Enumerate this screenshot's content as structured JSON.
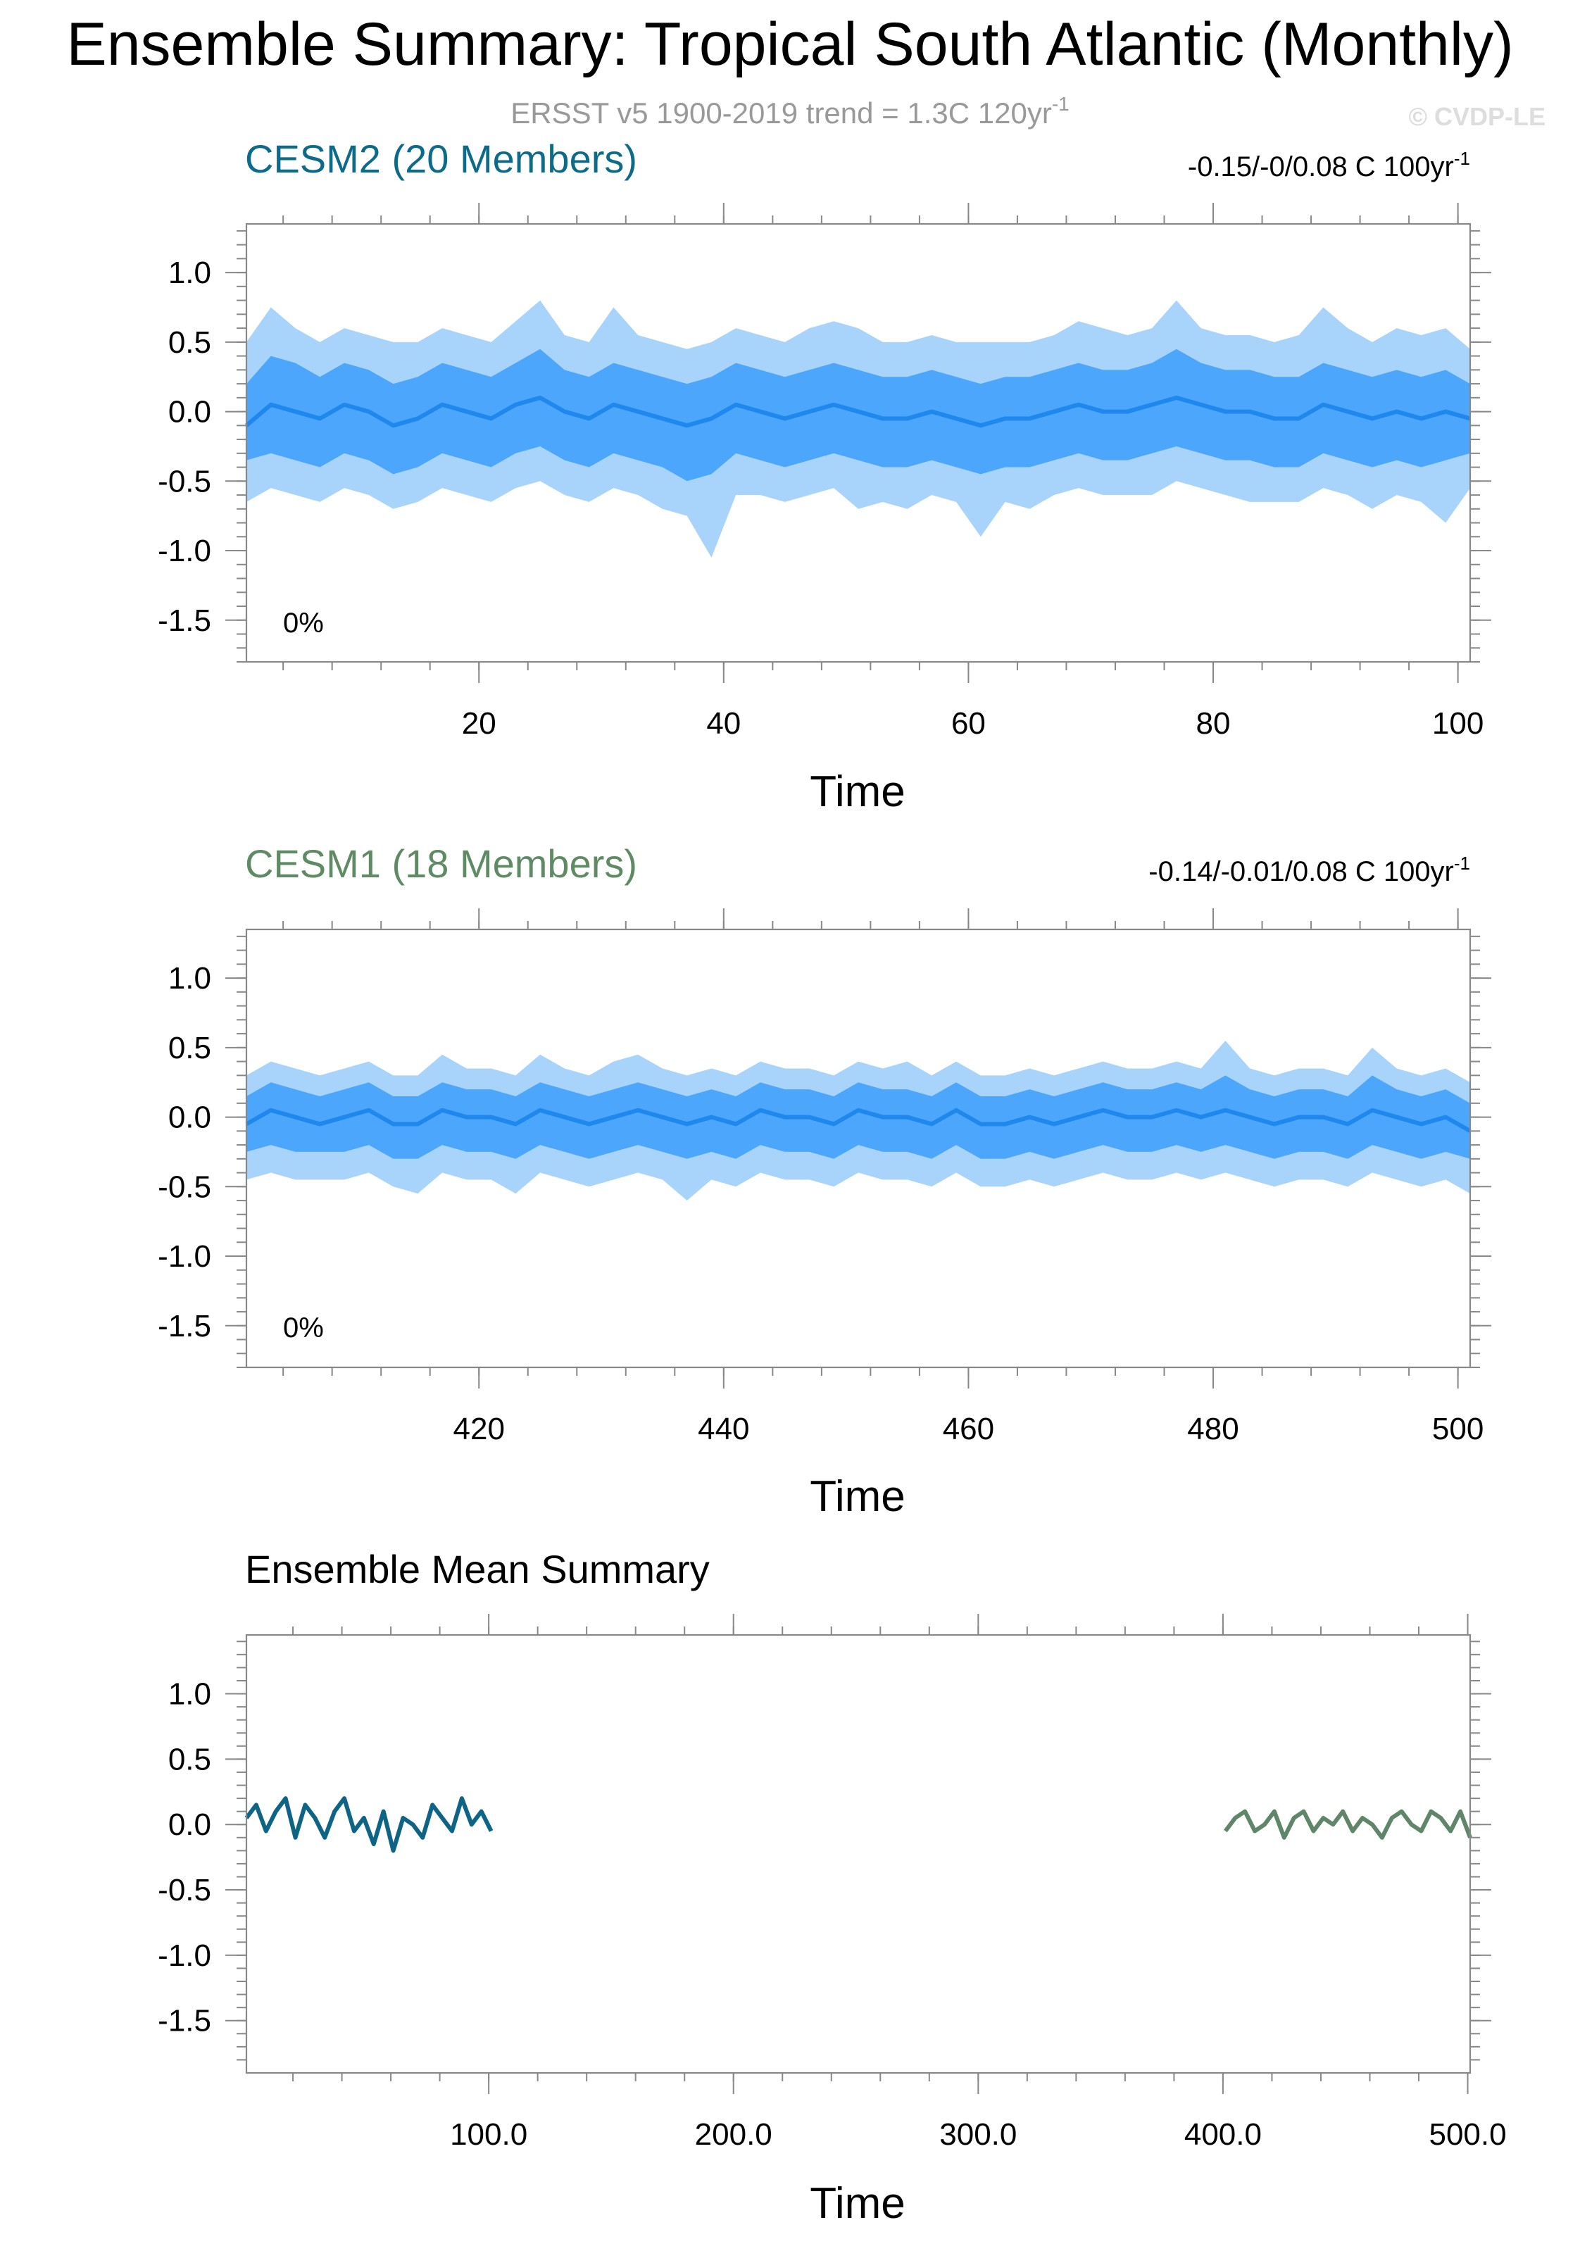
{
  "title": "Ensemble Summary: Tropical South Atlantic (Monthly)",
  "subtitle": "ERSST v5 1900-2019 trend = 1.3C 120yr",
  "subtitle_sup": "-1",
  "copyright": "© CVDP-LE",
  "colors": {
    "cesm2_title": "#0d6b8a",
    "cesm1_title": "#5e8a64",
    "band_outer": "#a8d4fb",
    "band_inner": "#4ca6fb",
    "mean_line": "#1e88ee",
    "cesm2_mean": "#0e6485",
    "cesm1_mean": "#60866a",
    "subtitle": "#999999",
    "copyright": "#dddddd"
  },
  "chart_data": [
    {
      "type": "area",
      "title": "CESM2 (20 Members)",
      "trend_label": "-0.15/-0/0.08 C 100yr",
      "trend_sup": "-1",
      "percent_label": "0%",
      "xlabel": "Time",
      "ylabel": "",
      "xlim": [
        1,
        101
      ],
      "ylim": [
        -1.8,
        1.35
      ],
      "xticks": [
        20,
        40,
        60,
        80,
        100
      ],
      "xtick_labels": [
        "20",
        "40",
        "60",
        "80",
        "100"
      ],
      "yticks": [
        1.0,
        0.5,
        0.0,
        -0.5,
        -1.0,
        -1.5
      ],
      "ytick_labels": [
        "1.0",
        "0.5",
        "0.0",
        "-0.5",
        "-1.0",
        "-1.5"
      ],
      "series": {
        "x": [
          1,
          3,
          5,
          7,
          9,
          11,
          13,
          15,
          17,
          19,
          21,
          23,
          25,
          27,
          29,
          31,
          33,
          35,
          37,
          39,
          41,
          43,
          45,
          47,
          49,
          51,
          53,
          55,
          57,
          59,
          61,
          63,
          65,
          67,
          69,
          71,
          73,
          75,
          77,
          79,
          81,
          83,
          85,
          87,
          89,
          91,
          93,
          95,
          97,
          99,
          101
        ],
        "mean": [
          -0.1,
          0.05,
          0.0,
          -0.05,
          0.05,
          0.0,
          -0.1,
          -0.05,
          0.05,
          0.0,
          -0.05,
          0.05,
          0.1,
          0.0,
          -0.05,
          0.05,
          0.0,
          -0.05,
          -0.1,
          -0.05,
          0.05,
          0.0,
          -0.05,
          0.0,
          0.05,
          0.0,
          -0.05,
          -0.05,
          0.0,
          -0.05,
          -0.1,
          -0.05,
          -0.05,
          0.0,
          0.05,
          0.0,
          0.0,
          0.05,
          0.1,
          0.05,
          0.0,
          0.0,
          -0.05,
          -0.05,
          0.05,
          0.0,
          -0.05,
          0.0,
          -0.05,
          0.0,
          -0.05
        ],
        "inner_upper": [
          0.2,
          0.4,
          0.35,
          0.25,
          0.35,
          0.3,
          0.2,
          0.25,
          0.35,
          0.3,
          0.25,
          0.35,
          0.45,
          0.3,
          0.25,
          0.35,
          0.3,
          0.25,
          0.2,
          0.25,
          0.35,
          0.3,
          0.25,
          0.3,
          0.35,
          0.3,
          0.25,
          0.25,
          0.3,
          0.25,
          0.2,
          0.25,
          0.25,
          0.3,
          0.35,
          0.3,
          0.3,
          0.35,
          0.45,
          0.35,
          0.3,
          0.3,
          0.25,
          0.25,
          0.35,
          0.3,
          0.25,
          0.3,
          0.25,
          0.3,
          0.2
        ],
        "inner_lower": [
          -0.35,
          -0.3,
          -0.35,
          -0.4,
          -0.3,
          -0.35,
          -0.45,
          -0.4,
          -0.3,
          -0.35,
          -0.4,
          -0.3,
          -0.25,
          -0.35,
          -0.4,
          -0.3,
          -0.35,
          -0.4,
          -0.5,
          -0.45,
          -0.3,
          -0.35,
          -0.4,
          -0.35,
          -0.3,
          -0.35,
          -0.4,
          -0.4,
          -0.35,
          -0.4,
          -0.45,
          -0.4,
          -0.4,
          -0.35,
          -0.3,
          -0.35,
          -0.35,
          -0.3,
          -0.25,
          -0.3,
          -0.35,
          -0.35,
          -0.4,
          -0.4,
          -0.3,
          -0.35,
          -0.4,
          -0.35,
          -0.4,
          -0.35,
          -0.3
        ],
        "outer_upper": [
          0.5,
          0.75,
          0.6,
          0.5,
          0.6,
          0.55,
          0.5,
          0.5,
          0.6,
          0.55,
          0.5,
          0.65,
          0.8,
          0.55,
          0.5,
          0.75,
          0.55,
          0.5,
          0.45,
          0.5,
          0.6,
          0.55,
          0.5,
          0.6,
          0.65,
          0.6,
          0.5,
          0.5,
          0.55,
          0.5,
          0.5,
          0.5,
          0.5,
          0.55,
          0.65,
          0.6,
          0.55,
          0.6,
          0.8,
          0.6,
          0.55,
          0.55,
          0.5,
          0.55,
          0.75,
          0.6,
          0.5,
          0.6,
          0.55,
          0.6,
          0.45
        ],
        "outer_lower": [
          -0.65,
          -0.55,
          -0.6,
          -0.65,
          -0.55,
          -0.6,
          -0.7,
          -0.65,
          -0.55,
          -0.6,
          -0.65,
          -0.55,
          -0.5,
          -0.6,
          -0.65,
          -0.55,
          -0.6,
          -0.7,
          -0.75,
          -1.05,
          -0.6,
          -0.6,
          -0.65,
          -0.6,
          -0.55,
          -0.7,
          -0.65,
          -0.7,
          -0.6,
          -0.65,
          -0.9,
          -0.65,
          -0.7,
          -0.6,
          -0.55,
          -0.6,
          -0.6,
          -0.6,
          -0.5,
          -0.55,
          -0.6,
          -0.65,
          -0.65,
          -0.65,
          -0.55,
          -0.6,
          -0.7,
          -0.6,
          -0.65,
          -0.8,
          -0.55
        ]
      }
    },
    {
      "type": "area",
      "title": "CESM1 (18 Members)",
      "trend_label": "-0.14/-0.01/0.08 C 100yr",
      "trend_sup": "-1",
      "percent_label": "0%",
      "xlabel": "Time",
      "ylabel": "",
      "xlim": [
        401,
        501
      ],
      "ylim": [
        -1.8,
        1.35
      ],
      "xticks": [
        420,
        440,
        460,
        480,
        500
      ],
      "xtick_labels": [
        "420",
        "440",
        "460",
        "480",
        "500"
      ],
      "yticks": [
        1.0,
        0.5,
        0.0,
        -0.5,
        -1.0,
        -1.5
      ],
      "ytick_labels": [
        "1.0",
        "0.5",
        "0.0",
        "-0.5",
        "-1.0",
        "-1.5"
      ],
      "series": {
        "x": [
          401,
          403,
          405,
          407,
          409,
          411,
          413,
          415,
          417,
          419,
          421,
          423,
          425,
          427,
          429,
          431,
          433,
          435,
          437,
          439,
          441,
          443,
          445,
          447,
          449,
          451,
          453,
          455,
          457,
          459,
          461,
          463,
          465,
          467,
          469,
          471,
          473,
          475,
          477,
          479,
          481,
          483,
          485,
          487,
          489,
          491,
          493,
          495,
          497,
          499,
          501
        ],
        "mean": [
          -0.05,
          0.05,
          0.0,
          -0.05,
          0.0,
          0.05,
          -0.05,
          -0.05,
          0.05,
          0.0,
          0.0,
          -0.05,
          0.05,
          0.0,
          -0.05,
          0.0,
          0.05,
          0.0,
          -0.05,
          0.0,
          -0.05,
          0.05,
          0.0,
          0.0,
          -0.05,
          0.05,
          0.0,
          0.0,
          -0.05,
          0.05,
          -0.05,
          -0.05,
          0.0,
          -0.05,
          0.0,
          0.05,
          0.0,
          0.0,
          0.05,
          0.0,
          0.05,
          0.0,
          -0.05,
          0.0,
          0.0,
          -0.05,
          0.05,
          0.0,
          -0.05,
          0.0,
          -0.1
        ],
        "inner_upper": [
          0.15,
          0.25,
          0.2,
          0.15,
          0.2,
          0.25,
          0.15,
          0.15,
          0.25,
          0.2,
          0.2,
          0.15,
          0.25,
          0.2,
          0.15,
          0.2,
          0.25,
          0.2,
          0.15,
          0.2,
          0.15,
          0.25,
          0.2,
          0.2,
          0.15,
          0.25,
          0.2,
          0.2,
          0.15,
          0.25,
          0.15,
          0.15,
          0.2,
          0.15,
          0.2,
          0.25,
          0.2,
          0.2,
          0.25,
          0.2,
          0.3,
          0.2,
          0.15,
          0.2,
          0.2,
          0.15,
          0.3,
          0.2,
          0.15,
          0.2,
          0.1
        ],
        "inner_lower": [
          -0.25,
          -0.2,
          -0.25,
          -0.25,
          -0.25,
          -0.2,
          -0.3,
          -0.3,
          -0.2,
          -0.25,
          -0.25,
          -0.3,
          -0.2,
          -0.25,
          -0.3,
          -0.25,
          -0.2,
          -0.25,
          -0.3,
          -0.25,
          -0.3,
          -0.2,
          -0.25,
          -0.25,
          -0.3,
          -0.2,
          -0.25,
          -0.25,
          -0.3,
          -0.2,
          -0.3,
          -0.3,
          -0.25,
          -0.3,
          -0.25,
          -0.2,
          -0.25,
          -0.25,
          -0.2,
          -0.25,
          -0.2,
          -0.25,
          -0.3,
          -0.25,
          -0.25,
          -0.3,
          -0.2,
          -0.25,
          -0.3,
          -0.25,
          -0.3
        ],
        "outer_upper": [
          0.3,
          0.4,
          0.35,
          0.3,
          0.35,
          0.4,
          0.3,
          0.3,
          0.45,
          0.35,
          0.35,
          0.3,
          0.45,
          0.35,
          0.3,
          0.4,
          0.45,
          0.35,
          0.3,
          0.35,
          0.3,
          0.4,
          0.35,
          0.35,
          0.3,
          0.4,
          0.35,
          0.4,
          0.3,
          0.4,
          0.3,
          0.3,
          0.35,
          0.3,
          0.35,
          0.4,
          0.35,
          0.35,
          0.4,
          0.35,
          0.55,
          0.35,
          0.3,
          0.35,
          0.35,
          0.3,
          0.5,
          0.35,
          0.3,
          0.35,
          0.25
        ],
        "outer_lower": [
          -0.45,
          -0.4,
          -0.45,
          -0.45,
          -0.45,
          -0.4,
          -0.5,
          -0.55,
          -0.4,
          -0.45,
          -0.45,
          -0.55,
          -0.4,
          -0.45,
          -0.5,
          -0.45,
          -0.4,
          -0.45,
          -0.6,
          -0.45,
          -0.5,
          -0.4,
          -0.45,
          -0.45,
          -0.5,
          -0.4,
          -0.45,
          -0.45,
          -0.5,
          -0.4,
          -0.5,
          -0.5,
          -0.45,
          -0.5,
          -0.45,
          -0.4,
          -0.45,
          -0.45,
          -0.4,
          -0.45,
          -0.4,
          -0.45,
          -0.5,
          -0.45,
          -0.45,
          -0.5,
          -0.4,
          -0.45,
          -0.5,
          -0.45,
          -0.55
        ]
      }
    },
    {
      "type": "line",
      "title": "Ensemble Mean Summary",
      "xlabel": "Time",
      "ylabel": "",
      "xlim": [
        1,
        501
      ],
      "ylim": [
        -1.9,
        1.45
      ],
      "xticks": [
        100,
        200,
        300,
        400,
        500
      ],
      "xtick_labels": [
        "100.0",
        "200.0",
        "300.0",
        "400.0",
        "500.0"
      ],
      "yticks": [
        1.0,
        0.5,
        0.0,
        -0.5,
        -1.0,
        -1.5
      ],
      "ytick_labels": [
        "1.0",
        "0.5",
        "0.0",
        "-0.5",
        "-1.0",
        "-1.5"
      ],
      "series": [
        {
          "x": [
            1,
            5,
            9,
            13,
            17,
            21,
            25,
            29,
            33,
            37,
            41,
            45,
            49,
            53,
            57,
            61,
            65,
            69,
            73,
            77,
            81,
            85,
            89,
            93,
            97,
            101
          ],
          "values": [
            0.05,
            0.15,
            -0.05,
            0.1,
            0.2,
            -0.1,
            0.15,
            0.05,
            -0.1,
            0.1,
            0.2,
            -0.05,
            0.05,
            -0.15,
            0.1,
            -0.2,
            0.05,
            0.0,
            -0.1,
            0.15,
            0.05,
            -0.05,
            0.2,
            0.0,
            0.1,
            -0.05
          ]
        },
        {
          "x": [
            401,
            405,
            409,
            413,
            417,
            421,
            425,
            429,
            433,
            437,
            441,
            445,
            449,
            453,
            457,
            461,
            465,
            469,
            473,
            477,
            481,
            485,
            489,
            493,
            497,
            501
          ],
          "values": [
            -0.05,
            0.05,
            0.1,
            -0.05,
            0.0,
            0.1,
            -0.1,
            0.05,
            0.1,
            -0.05,
            0.05,
            0.0,
            0.1,
            -0.05,
            0.05,
            0.0,
            -0.1,
            0.05,
            0.1,
            0.0,
            -0.05,
            0.1,
            0.05,
            -0.05,
            0.1,
            -0.1
          ]
        }
      ]
    }
  ]
}
